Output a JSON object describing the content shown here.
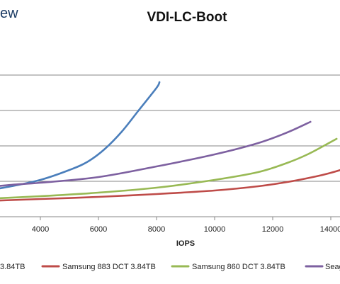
{
  "brand": {
    "text": "ew"
  },
  "chart_data": {
    "type": "line",
    "title": "VDI-LC-Boot",
    "xlabel": "IOPS",
    "ylabel": "",
    "x_ticks": [
      4000,
      6000,
      8000,
      10000,
      12000,
      14000
    ],
    "x_tick_labels": [
      "4000",
      "6000",
      "8000",
      "10000",
      "12000",
      "14000"
    ],
    "grid": true,
    "legend_position": "bottom",
    "series": [
      {
        "name": "",
        "legend_visible_text": "3.84TB",
        "color": "#4a7ebb",
        "x": [
          2000,
          3000,
          4000,
          5000,
          5600,
          6200,
          6800,
          7400,
          8000,
          8100
        ],
        "y": [
          0.1,
          0.17,
          0.26,
          0.4,
          0.51,
          0.69,
          0.94,
          1.25,
          1.56,
          1.64
        ]
      },
      {
        "name": "Samsung 883 DCT 3.84TB",
        "color": "#be4b48",
        "x": [
          2000,
          4000,
          6000,
          8000,
          10000,
          11500,
          12500,
          13500,
          14000,
          14500
        ],
        "y": [
          -0.04,
          -0.01,
          0.02,
          0.06,
          0.11,
          0.17,
          0.23,
          0.31,
          0.36,
          0.42
        ]
      },
      {
        "name": "Samsung 860 DCT 3.84TB",
        "color": "#98b954",
        "x": [
          2000,
          4000,
          6000,
          8000,
          10000,
          11500,
          12500,
          13200,
          13800,
          14200
        ],
        "y": [
          -0.01,
          0.03,
          0.08,
          0.15,
          0.26,
          0.37,
          0.5,
          0.62,
          0.75,
          0.84
        ]
      },
      {
        "name": "Seag",
        "color": "#7d60a0",
        "x": [
          2000,
          3000,
          4000,
          6000,
          8000,
          10000,
          11500,
          12500,
          13300
        ],
        "y": [
          0.15,
          0.19,
          0.22,
          0.3,
          0.45,
          0.62,
          0.78,
          0.93,
          1.08
        ]
      }
    ]
  }
}
